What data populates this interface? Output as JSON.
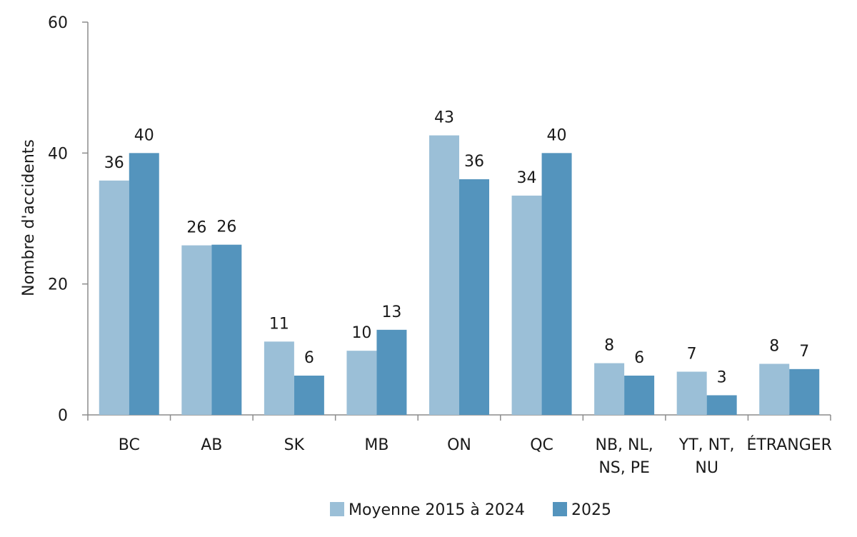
{
  "chart_data": {
    "type": "bar",
    "title": "",
    "xlabel": "",
    "ylabel": "Nombre d'accidents",
    "ylim": [
      0,
      60
    ],
    "yticks": [
      0,
      20,
      40,
      60
    ],
    "grid": false,
    "legend_position": "bottom",
    "categories": [
      [
        "BC"
      ],
      [
        "AB"
      ],
      [
        "SK"
      ],
      [
        "MB"
      ],
      [
        "ON"
      ],
      [
        "QC"
      ],
      [
        "NB, NL,",
        "NS, PE"
      ],
      [
        "YT, NT,",
        "NU"
      ],
      [
        "ÉTRANGER"
      ]
    ],
    "series": [
      {
        "name": "Moyenne 2015 à 2024",
        "color": "#9bbfd7",
        "values": [
          35.8,
          25.9,
          11.2,
          9.8,
          42.7,
          33.5,
          7.9,
          6.6,
          7.8
        ],
        "labels": [
          "36",
          "26",
          "11",
          "10",
          "43",
          "34",
          "8",
          "7",
          "8"
        ]
      },
      {
        "name": "2025",
        "color": "#5494bd",
        "values": [
          40,
          26,
          6,
          13,
          36,
          40,
          6,
          3,
          7
        ],
        "labels": [
          "40",
          "26",
          "6",
          "13",
          "36",
          "40",
          "6",
          "3",
          "7"
        ]
      }
    ]
  }
}
